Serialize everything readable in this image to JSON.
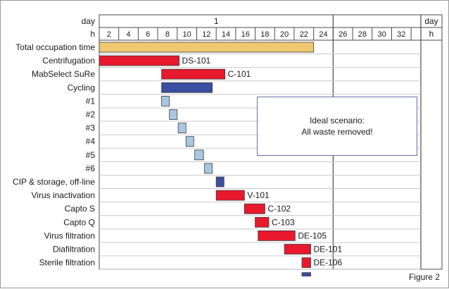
{
  "chart_data": {
    "type": "gantt",
    "header": {
      "day_row_label": "day",
      "hour_row_label": "h",
      "day_values": [
        "1",
        "day"
      ],
      "hour_end_label": "h"
    },
    "hour_ticks": [
      "2",
      "4",
      "6",
      "8",
      "10",
      "12",
      "14",
      "16",
      "18",
      "20",
      "22",
      "24",
      "26",
      "28",
      "30",
      "32"
    ],
    "x_range": [
      1,
      34
    ],
    "day_boundary": 25,
    "rows": [
      {
        "label": "Total occupation time",
        "start": 1,
        "end": 23,
        "color": "#f0c870",
        "bar_label": ""
      },
      {
        "label": "Centrifugation",
        "start": 1,
        "end": 9.2,
        "color": "#e8192c",
        "bar_label": "DS-101"
      },
      {
        "label": "MabSelect SuRe",
        "start": 7.4,
        "end": 13.9,
        "color": "#e8192c",
        "bar_label": "C-101"
      },
      {
        "label": "Cycling",
        "start": 7.4,
        "end": 12.6,
        "color": "#3a4fa0",
        "bar_label": ""
      },
      {
        "label": "#1",
        "start": 7.4,
        "end": 8.2,
        "color": "#a9c7e2",
        "bar_label": ""
      },
      {
        "label": "#2",
        "start": 8.2,
        "end": 9.0,
        "color": "#a9c7e2",
        "bar_label": ""
      },
      {
        "label": "#3",
        "start": 9.1,
        "end": 9.9,
        "color": "#a9c7e2",
        "bar_label": ""
      },
      {
        "label": "#4",
        "start": 9.9,
        "end": 10.7,
        "color": "#a9c7e2",
        "bar_label": ""
      },
      {
        "label": "#5",
        "start": 10.8,
        "end": 11.7,
        "color": "#a9c7e2",
        "bar_label": ""
      },
      {
        "label": "#6",
        "start": 11.8,
        "end": 12.6,
        "color": "#a9c7e2",
        "bar_label": ""
      },
      {
        "label": "CIP & storage, off-line",
        "start": 13.0,
        "end": 13.8,
        "color": "#3a4fa0",
        "bar_label": ""
      },
      {
        "label": "Virus inactivation",
        "start": 13.0,
        "end": 15.9,
        "color": "#e8192c",
        "bar_label": "V-101"
      },
      {
        "label": "Capto S",
        "start": 15.9,
        "end": 18.0,
        "color": "#e8192c",
        "bar_label": "C-102"
      },
      {
        "label": "Capto Q",
        "start": 17.0,
        "end": 18.4,
        "color": "#e8192c",
        "bar_label": "C-103"
      },
      {
        "label": "Virus filtration",
        "start": 17.3,
        "end": 21.1,
        "color": "#e8192c",
        "bar_label": "DE-105"
      },
      {
        "label": "Diafiltration",
        "start": 20.0,
        "end": 22.7,
        "color": "#e8192c",
        "bar_label": "DE-101"
      },
      {
        "label": "Sterile filtration",
        "start": 21.8,
        "end": 22.7,
        "color": "#e8192c",
        "bar_label": "DE-106"
      }
    ],
    "annotation": [
      "Ideal scenario:",
      "All waste removed!"
    ],
    "figure_label": "Figure 2"
  }
}
